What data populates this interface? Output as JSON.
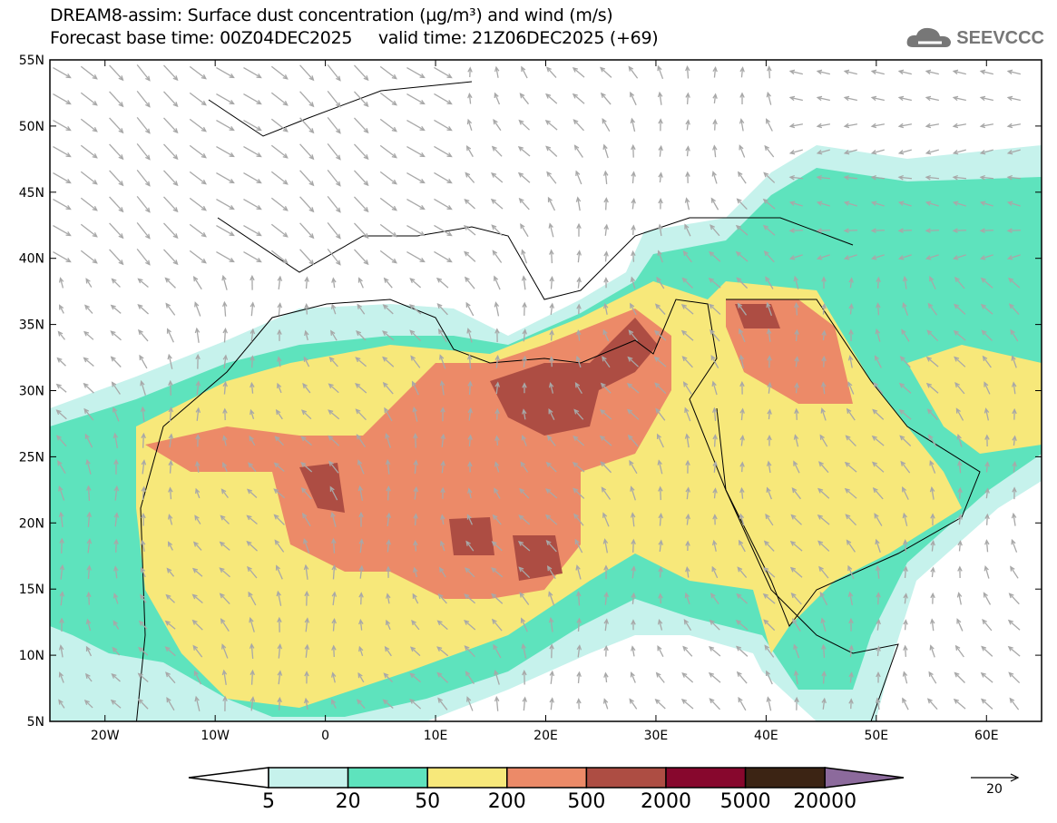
{
  "header": {
    "title": "DREAM8-assim: Surface dust concentration (µg/m³) and wind (m/s)",
    "subtitle": "Forecast base time: 00Z04DEC2025     valid time: 21Z06DEC2025 (+69)",
    "logo_text": "SEEVCCC"
  },
  "map": {
    "lat_labels": [
      "55N",
      "50N",
      "45N",
      "40N",
      "35N",
      "30N",
      "25N",
      "20N",
      "15N",
      "10N",
      "5N"
    ],
    "lon_labels": [
      "20W",
      "10W",
      "0",
      "10E",
      "20E",
      "30E",
      "40E",
      "50E",
      "60E"
    ],
    "arrow_color": "#a8a8a8"
  },
  "legend": {
    "levels": [
      "5",
      "20",
      "50",
      "200",
      "500",
      "2000",
      "5000",
      "20000"
    ],
    "colors": [
      "#ffffff",
      "#c6f2ec",
      "#5ee3bd",
      "#f7e87a",
      "#ec8a68",
      "#ad4d43",
      "#87072d",
      "#3c2414",
      "#8c6a9c"
    ],
    "reference_vector_label": "20"
  }
}
